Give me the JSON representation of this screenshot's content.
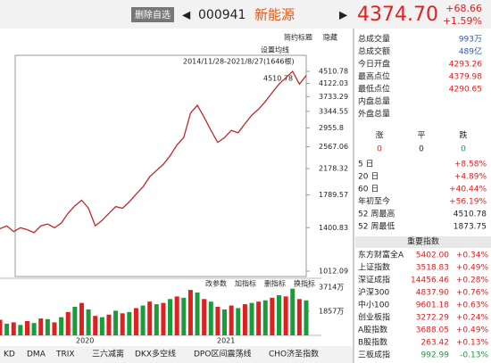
{
  "header": {
    "button": "删除自选",
    "code": "000941",
    "name": "新能源",
    "price": "4374.70",
    "change": "+68.66",
    "pct": "+1.59%"
  },
  "toolbar": {
    "simple": "简约标题",
    "hide": "隐藏",
    "ma": "设置均线",
    "vol_tools": [
      "改参数",
      "加指标",
      "删指标",
      "换指标"
    ]
  },
  "chart_data": {
    "type": "line",
    "range_label": "2014/11/28-2021/8/27(1646根)",
    "peak_label": "4510.78",
    "log": true,
    "ylim": [
      1012.09,
      4510.78
    ],
    "yticks": [
      4510.78,
      4122.03,
      3733.29,
      3344.55,
      2955.8,
      2567.06,
      2178.32,
      1789.57,
      1400.83,
      1012.09
    ],
    "values": [
      1390,
      1420,
      1360,
      1400,
      1380,
      1350,
      1420,
      1440,
      1400,
      1450,
      1560,
      1650,
      1720,
      1620,
      1420,
      1480,
      1560,
      1640,
      1620,
      1700,
      1800,
      1900,
      2050,
      2150,
      2250,
      2400,
      2600,
      2750,
      3300,
      3500,
      3200,
      2900,
      2650,
      2750,
      2900,
      2850,
      3050,
      3250,
      3400,
      3600,
      3850,
      4100,
      4300,
      4510.78,
      4100,
      4374.7
    ],
    "color": "#c0282a",
    "volume": {
      "ylim": [
        0,
        3714
      ],
      "yticks": [
        {
          "value": 3714,
          "label": "3714万"
        },
        {
          "value": 1857,
          "label": "1857万"
        }
      ],
      "colors": [
        "#e02020",
        "#1a9c3a"
      ],
      "values": [
        1200,
        900,
        1000,
        800,
        1100,
        950,
        1300,
        1250,
        1000,
        1400,
        1800,
        2200,
        2500,
        2000,
        1500,
        1400,
        1600,
        1900,
        1700,
        1800,
        2100,
        2300,
        2600,
        2400,
        2500,
        2800,
        3000,
        2900,
        3500,
        3300,
        2800,
        2600,
        2200,
        2000,
        2300,
        2100,
        2400,
        2500,
        2600,
        2700,
        2900,
        3100,
        3000,
        3600,
        2800,
        2700
      ]
    }
  },
  "xlabels": [
    "2020",
    "2021"
  ],
  "tabs": [
    "KD",
    "DMA",
    "TRIX",
    "三六减离",
    "DKX多空线",
    "DPO区间震荡线",
    "CHO济圣指数"
  ],
  "stats": [
    [
      "总成交量",
      "993万"
    ],
    [
      "总成交额",
      "489亿"
    ],
    [
      "今日开盘",
      "4293.26"
    ],
    [
      "最高点位",
      "4379.98"
    ],
    [
      "最低点位",
      "4290.65"
    ],
    [
      "内盘总量"
    ],
    [
      "外盘总量"
    ]
  ],
  "updown": {
    "labels": [
      "涨",
      "平",
      "跌"
    ],
    "values": [
      "0",
      "0",
      "0"
    ]
  },
  "perf": [
    [
      "5 日",
      "+8.58%"
    ],
    [
      "20 日",
      "+4.89%"
    ],
    [
      "60 日",
      "+40.44%"
    ],
    [
      "年初至今",
      "+56.19%"
    ],
    [
      "52 周最高",
      "4510.78"
    ],
    [
      "52 周最低",
      "1873.75"
    ]
  ],
  "index_title": "重要指数",
  "indices": [
    [
      "东方财富全A",
      "5402.00",
      "+0.34%"
    ],
    [
      "上证指数",
      "3518.83",
      "+0.49%"
    ],
    [
      "深证成指",
      "14456.46",
      "+0.28%"
    ],
    [
      "沪深300",
      "4837.90",
      "+0.76%"
    ],
    [
      "中小100",
      "9601.18",
      "+0.63%"
    ],
    [
      "创业板指",
      "3272.29",
      "+0.24%"
    ],
    [
      "A股指数",
      "3688.05",
      "+0.49%"
    ],
    [
      "B股指数",
      "263.42",
      "+0.13%"
    ],
    [
      "三板成指",
      "992.99",
      "-0.13%"
    ]
  ]
}
